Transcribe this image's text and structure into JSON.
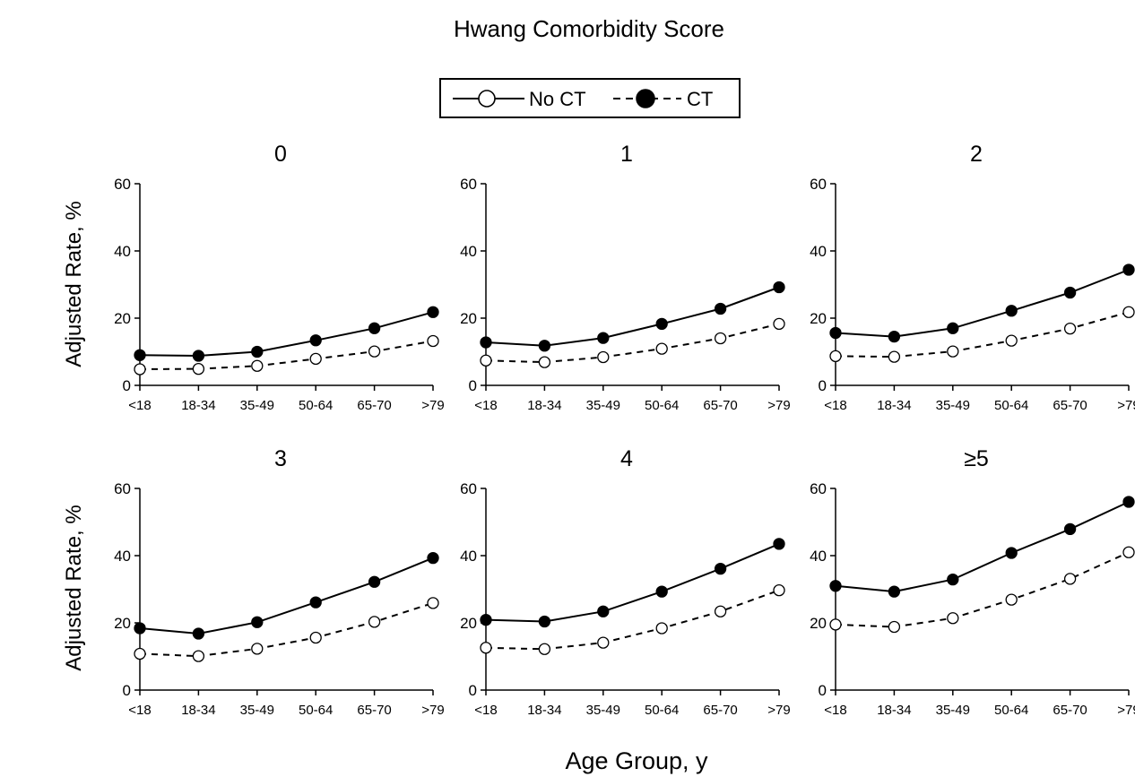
{
  "chart_data": {
    "type": "line",
    "title": "Hwang Comorbidity Score",
    "xlabel": "Age Group, y",
    "ylabel": "Adjusted Rate, %",
    "categories": [
      "<18",
      "18-34",
      "35-49",
      "50-64",
      "65-70",
      ">79"
    ],
    "ylim": [
      0,
      60
    ],
    "yticks": [
      0,
      20,
      40,
      60
    ],
    "grid": false,
    "legend": {
      "placement": "top-center",
      "entries": [
        {
          "label": "No CT",
          "marker": "open-circle",
          "line": "solid"
        },
        {
          "label": "CT",
          "marker": "filled-circle",
          "line": "dashed"
        }
      ]
    },
    "panels": [
      {
        "title": "0",
        "series": [
          {
            "name": "No CT",
            "values": [
              4.8,
              4.9,
              5.8,
              7.9,
              10.1,
              13.2
            ]
          },
          {
            "name": "CT",
            "values": [
              9.0,
              8.8,
              10.0,
              13.4,
              17.0,
              21.8
            ]
          }
        ]
      },
      {
        "title": "1",
        "series": [
          {
            "name": "No CT",
            "values": [
              7.4,
              6.9,
              8.4,
              10.9,
              14.0,
              18.3
            ]
          },
          {
            "name": "CT",
            "values": [
              12.8,
              11.8,
              14.1,
              18.3,
              22.8,
              29.2
            ]
          }
        ]
      },
      {
        "title": "2",
        "series": [
          {
            "name": "No CT",
            "values": [
              8.7,
              8.5,
              10.1,
              13.3,
              16.9,
              21.8
            ]
          },
          {
            "name": "CT",
            "values": [
              15.6,
              14.5,
              17.0,
              22.2,
              27.6,
              34.4
            ]
          }
        ]
      },
      {
        "title": "3",
        "series": [
          {
            "name": "No CT",
            "values": [
              10.8,
              10.1,
              12.3,
              15.6,
              20.3,
              25.9
            ]
          },
          {
            "name": "CT",
            "values": [
              18.4,
              16.8,
              20.2,
              26.1,
              32.2,
              39.3
            ]
          }
        ]
      },
      {
        "title": "4",
        "series": [
          {
            "name": "No CT",
            "values": [
              12.6,
              12.2,
              14.1,
              18.4,
              23.4,
              29.7
            ]
          },
          {
            "name": "CT",
            "values": [
              20.9,
              20.4,
              23.4,
              29.3,
              36.1,
              43.5
            ]
          }
        ]
      },
      {
        "title": "≥5",
        "series": [
          {
            "name": "No CT",
            "values": [
              19.5,
              18.8,
              21.4,
              26.9,
              33.1,
              41.0
            ]
          },
          {
            "name": "CT",
            "values": [
              31.0,
              29.3,
              32.9,
              40.8,
              47.9,
              56.0
            ]
          }
        ]
      }
    ]
  }
}
